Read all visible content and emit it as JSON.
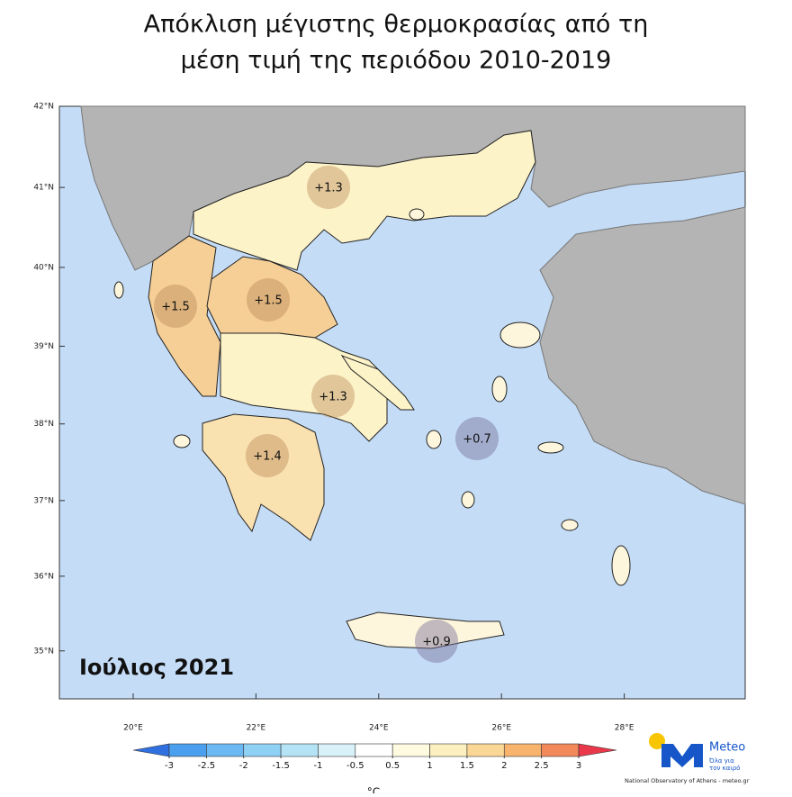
{
  "title": [
    "Απόκλιση μέγιστης θερμοκρασίας από τη",
    "μέση τιμή της περιόδου 2010-2019"
  ],
  "map": {
    "period_label": "Ιούλιος 2021",
    "lat_ticks": [
      {
        "value": 42,
        "label": "42°N"
      },
      {
        "value": 41,
        "label": "41°N"
      },
      {
        "value": 40,
        "label": "40°N"
      },
      {
        "value": 39,
        "label": "39°N"
      },
      {
        "value": 38,
        "label": "38°N"
      },
      {
        "value": 37,
        "label": "37°N"
      },
      {
        "value": 36,
        "label": "36°N"
      },
      {
        "value": 35,
        "label": "35°N"
      }
    ],
    "lon_ticks": [
      {
        "value": 20,
        "label": "20°E"
      },
      {
        "value": 22,
        "label": "22°E"
      },
      {
        "value": 24,
        "label": "24°E"
      },
      {
        "value": 26,
        "label": "26°E"
      },
      {
        "value": 28,
        "label": "28°E"
      }
    ],
    "regions": [
      {
        "value": 1.3,
        "label": "+1.3"
      },
      {
        "value": 1.5,
        "label": "+1.5"
      },
      {
        "value": 1.5,
        "label": "+1.5"
      },
      {
        "value": 1.3,
        "label": "+1.3"
      },
      {
        "value": 1.4,
        "label": "+1.4"
      },
      {
        "value": 0.7,
        "label": "+0.7"
      },
      {
        "value": 0.9,
        "label": "+0.9"
      }
    ]
  },
  "colorbar": {
    "ticks": [
      -3,
      -2.5,
      -2,
      -1.5,
      -1,
      -0.5,
      0.5,
      1,
      1.5,
      2,
      2.5,
      3
    ],
    "colors": [
      "#2f6fe0",
      "#4aa0ee",
      "#6cb8f2",
      "#8fd0f5",
      "#b5e3f6",
      "#d9f2fa",
      "#ffffff",
      "#fffbe0",
      "#fdf0c0",
      "#fbd796",
      "#f8b36d",
      "#f3895a",
      "#e8384a"
    ],
    "unit": "°C"
  },
  "logo": {
    "name": "Meteo",
    "slogan": [
      "Όλα για",
      "τον καιρό"
    ],
    "credit": "National Observatory of Athens - meteo.gr"
  }
}
